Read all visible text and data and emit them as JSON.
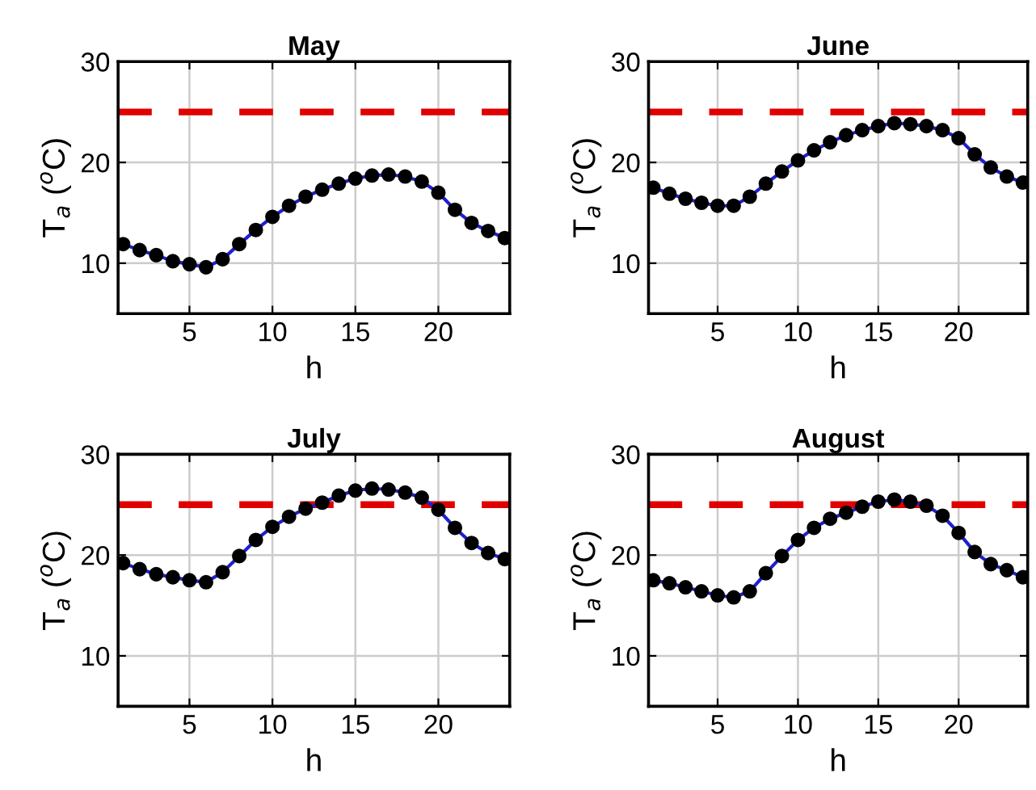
{
  "chart_data": [
    {
      "type": "line",
      "title": "May",
      "xlabel": "h",
      "ylabel": "T$_{a}$ ($^{o}$C)",
      "x": [
        1,
        2,
        3,
        4,
        5,
        6,
        7,
        8,
        9,
        10,
        11,
        12,
        13,
        14,
        15,
        16,
        17,
        18,
        19,
        20,
        21,
        22,
        23,
        24
      ],
      "series": [
        {
          "color": "#1f1fd0",
          "values": [
            11.9,
            11.3,
            10.8,
            10.2,
            9.9,
            9.6,
            10.4,
            11.9,
            13.3,
            14.6,
            15.7,
            16.6,
            17.3,
            17.9,
            18.4,
            18.7,
            18.8,
            18.6,
            18.1,
            17.0,
            15.3,
            14.0,
            13.2,
            12.5
          ]
        }
      ],
      "ref_lines": [
        {
          "axis": "y",
          "value": 25,
          "color": "#e00000",
          "line_style": "dashed"
        }
      ],
      "xlim": [
        0.7,
        24.3
      ],
      "ylim": [
        5,
        30
      ],
      "xticks": [
        5,
        10,
        15,
        20
      ],
      "yticks": [
        10,
        20,
        30
      ],
      "grid": true,
      "marker": "circle",
      "line_style": "solid"
    },
    {
      "type": "line",
      "title": "June",
      "xlabel": "h",
      "ylabel": "T$_{a}$ ($^{o}$C)",
      "x": [
        1,
        2,
        3,
        4,
        5,
        6,
        7,
        8,
        9,
        10,
        11,
        12,
        13,
        14,
        15,
        16,
        17,
        18,
        19,
        20,
        21,
        22,
        23,
        24
      ],
      "series": [
        {
          "color": "#1f1fd0",
          "values": [
            17.5,
            16.9,
            16.4,
            16.0,
            15.7,
            15.7,
            16.6,
            17.9,
            19.1,
            20.2,
            21.2,
            22.0,
            22.7,
            23.2,
            23.6,
            23.9,
            23.8,
            23.6,
            23.2,
            22.4,
            20.8,
            19.5,
            18.6,
            18.0
          ]
        }
      ],
      "ref_lines": [
        {
          "axis": "y",
          "value": 25,
          "color": "#e00000",
          "line_style": "dashed"
        }
      ],
      "xlim": [
        0.7,
        24.3
      ],
      "ylim": [
        5,
        30
      ],
      "xticks": [
        5,
        10,
        15,
        20
      ],
      "yticks": [
        10,
        20,
        30
      ],
      "grid": true,
      "marker": "circle",
      "line_style": "solid"
    },
    {
      "type": "line",
      "title": "July",
      "xlabel": "h",
      "ylabel": "T$_{a}$ ($^{o}$C)",
      "x": [
        1,
        2,
        3,
        4,
        5,
        6,
        7,
        8,
        9,
        10,
        11,
        12,
        13,
        14,
        15,
        16,
        17,
        18,
        19,
        20,
        21,
        22,
        23,
        24
      ],
      "series": [
        {
          "color": "#1f1fd0",
          "values": [
            19.2,
            18.6,
            18.1,
            17.8,
            17.5,
            17.3,
            18.3,
            19.9,
            21.5,
            22.8,
            23.8,
            24.6,
            25.2,
            25.9,
            26.4,
            26.6,
            26.5,
            26.2,
            25.7,
            24.5,
            22.7,
            21.2,
            20.2,
            19.6
          ]
        }
      ],
      "ref_lines": [
        {
          "axis": "y",
          "value": 25,
          "color": "#e00000",
          "line_style": "dashed"
        }
      ],
      "xlim": [
        0.7,
        24.3
      ],
      "ylim": [
        5,
        30
      ],
      "xticks": [
        5,
        10,
        15,
        20
      ],
      "yticks": [
        10,
        20,
        30
      ],
      "grid": true,
      "marker": "circle",
      "line_style": "solid"
    },
    {
      "type": "line",
      "title": "August",
      "xlabel": "h",
      "ylabel": "T$_{a}$ ($^{o}$C)",
      "x": [
        1,
        2,
        3,
        4,
        5,
        6,
        7,
        8,
        9,
        10,
        11,
        12,
        13,
        14,
        15,
        16,
        17,
        18,
        19,
        20,
        21,
        22,
        23,
        24
      ],
      "series": [
        {
          "color": "#1f1fd0",
          "values": [
            17.5,
            17.2,
            16.8,
            16.4,
            16.0,
            15.8,
            16.4,
            18.2,
            19.9,
            21.5,
            22.7,
            23.6,
            24.2,
            24.8,
            25.3,
            25.5,
            25.3,
            24.9,
            23.9,
            22.2,
            20.3,
            19.1,
            18.5,
            17.8
          ]
        }
      ],
      "ref_lines": [
        {
          "axis": "y",
          "value": 25,
          "color": "#e00000",
          "line_style": "dashed"
        }
      ],
      "xlim": [
        0.7,
        24.3
      ],
      "ylim": [
        5,
        30
      ],
      "xticks": [
        5,
        10,
        15,
        20
      ],
      "yticks": [
        10,
        20,
        30
      ],
      "grid": true,
      "marker": "circle",
      "line_style": "solid"
    }
  ]
}
